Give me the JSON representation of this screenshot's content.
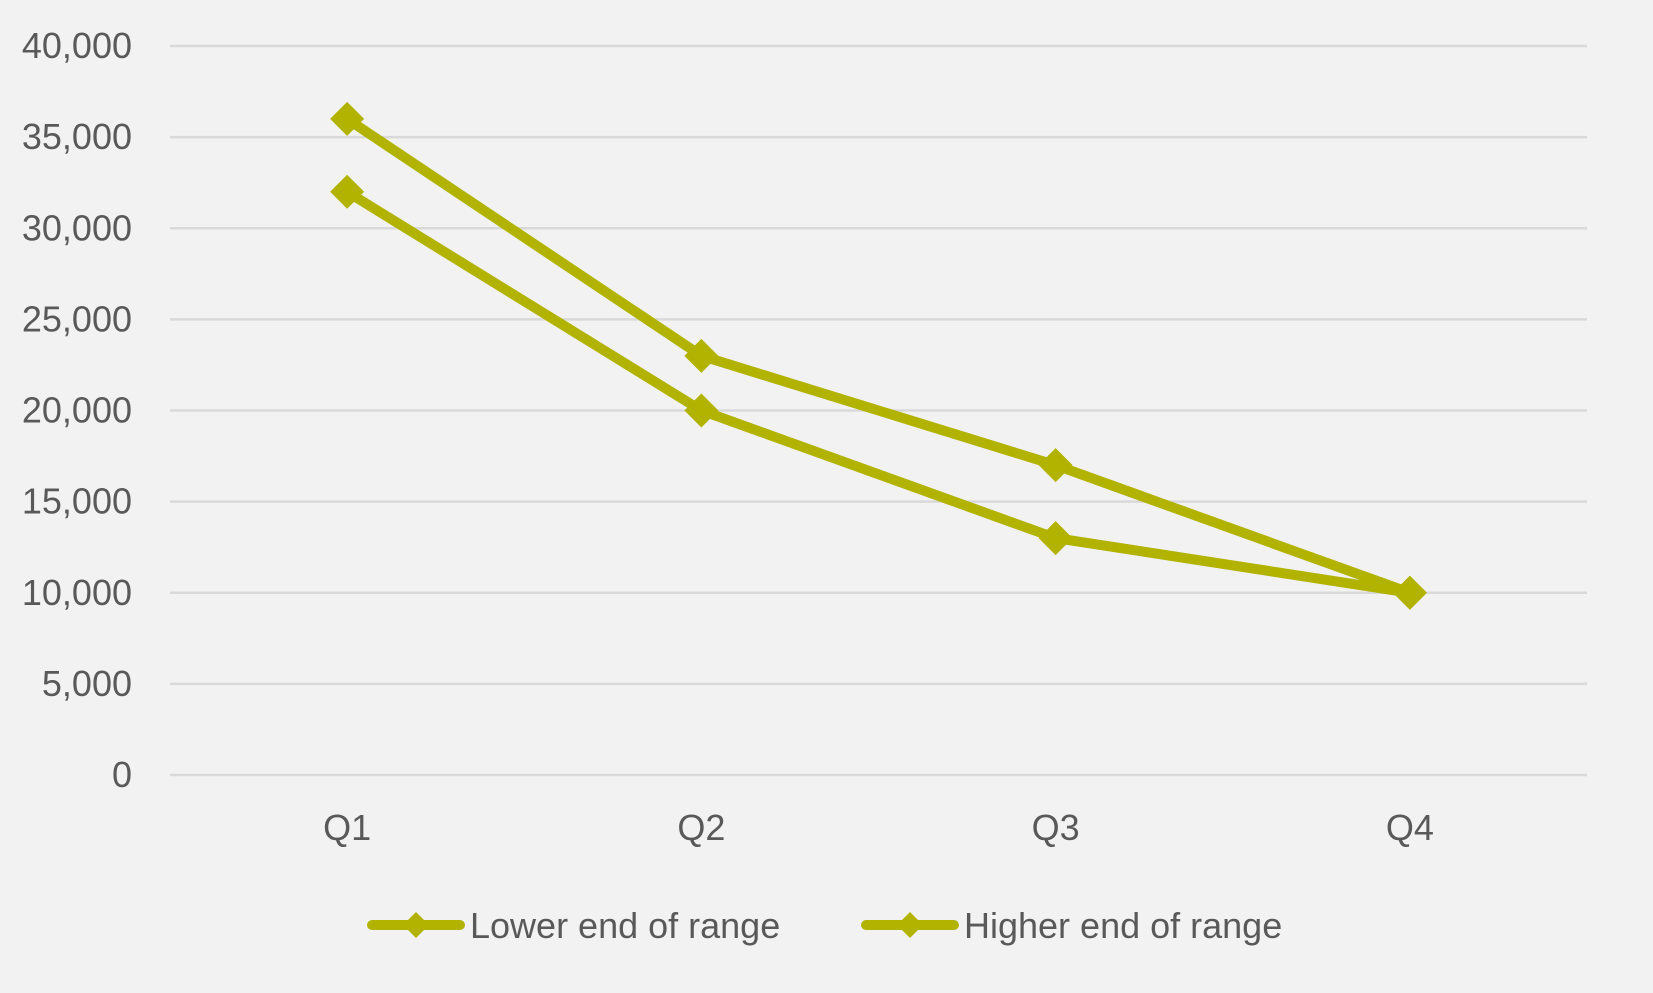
{
  "chart_data": {
    "type": "line",
    "title": "",
    "xlabel": "",
    "ylabel": "",
    "categories": [
      "Q1",
      "Q2",
      "Q3",
      "Q4"
    ],
    "ylim": [
      0,
      40000
    ],
    "yticks": [
      0,
      5000,
      10000,
      15000,
      20000,
      25000,
      30000,
      35000,
      40000
    ],
    "ytick_labels": [
      "0",
      "5,000",
      "10,000",
      "15,000",
      "20,000",
      "25,000",
      "30,000",
      "35,000",
      "40,000"
    ],
    "grid": true,
    "legend_position": "bottom",
    "series": [
      {
        "name": "Lower end of range",
        "color": "#b2b300",
        "marker": "diamond",
        "values": [
          32000,
          20000,
          13000,
          10000
        ]
      },
      {
        "name": "Higher end of range",
        "color": "#b2b300",
        "marker": "diamond",
        "values": [
          36000,
          23000,
          17000,
          10000
        ]
      }
    ]
  }
}
